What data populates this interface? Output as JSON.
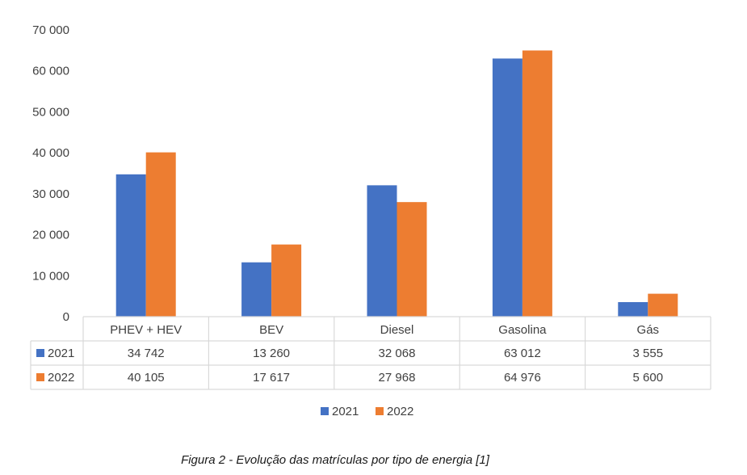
{
  "chart_data": {
    "type": "bar",
    "categories": [
      "PHEV + HEV",
      "BEV",
      "Diesel",
      "Gasolina",
      "Gás"
    ],
    "series": [
      {
        "name": "2021",
        "values": [
          34742,
          13260,
          32068,
          63012,
          3555
        ],
        "labels": [
          "34 742",
          "13 260",
          "32 068",
          "63 012",
          "3 555"
        ],
        "color": "#4472C4"
      },
      {
        "name": "2022",
        "values": [
          40105,
          17617,
          27968,
          64976,
          5600
        ],
        "labels": [
          "40 105",
          "17 617",
          "27 968",
          "64 976",
          "5 600"
        ],
        "color": "#ED7D31"
      }
    ],
    "ylim": [
      0,
      70000
    ],
    "yticks": [
      "0",
      "10 000",
      "20 000",
      "30 000",
      "40 000",
      "50 000",
      "60 000",
      "70 000"
    ],
    "grid": false,
    "data_table": true,
    "legend": "bottom"
  },
  "caption": "Figura 2 - Evolução das matrículas por tipo de energia [1]"
}
